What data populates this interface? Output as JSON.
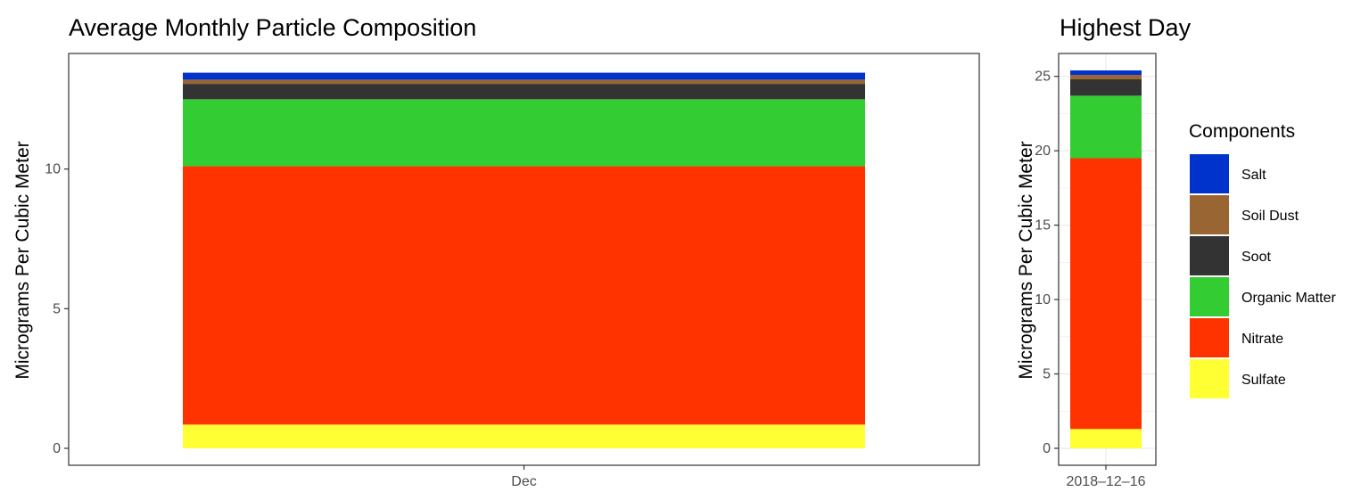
{
  "chart_data": [
    {
      "type": "bar",
      "stacked": true,
      "title": "Average Monthly Particle Composition",
      "xlabel": "",
      "ylabel": "Micrograms Per Cubic Meter",
      "categories": [
        "Dec"
      ],
      "ylim": [
        0,
        13.5
      ],
      "y_ticks": [
        0,
        5,
        10
      ],
      "grid": false,
      "series": [
        {
          "name": "Sulfate",
          "values": [
            0.85
          ]
        },
        {
          "name": "Nitrate",
          "values": [
            9.25
          ]
        },
        {
          "name": "Organic Matter",
          "values": [
            2.4
          ]
        },
        {
          "name": "Soot",
          "values": [
            0.55
          ]
        },
        {
          "name": "Soil Dust",
          "values": [
            0.15
          ]
        },
        {
          "name": "Salt",
          "values": [
            0.25
          ]
        }
      ]
    },
    {
      "type": "bar",
      "stacked": true,
      "title": "Highest Day",
      "xlabel": "",
      "ylabel": "Micrograms Per Cubic Meter",
      "categories": [
        "2018–12–16"
      ],
      "ylim": [
        0,
        25.4
      ],
      "y_ticks": [
        0,
        5,
        10,
        15,
        20,
        25
      ],
      "grid": true,
      "series": [
        {
          "name": "Sulfate",
          "values": [
            1.3
          ]
        },
        {
          "name": "Nitrate",
          "values": [
            18.2
          ]
        },
        {
          "name": "Organic Matter",
          "values": [
            4.2
          ]
        },
        {
          "name": "Soot",
          "values": [
            1.1
          ]
        },
        {
          "name": "Soil Dust",
          "values": [
            0.3
          ]
        },
        {
          "name": "Salt",
          "values": [
            0.3
          ]
        }
      ]
    }
  ],
  "legend": {
    "title": "Components",
    "placement": "right",
    "items": [
      {
        "label": "Salt",
        "color": "#0033CC"
      },
      {
        "label": "Soil Dust",
        "color": "#996633"
      },
      {
        "label": "Soot",
        "color": "#333333"
      },
      {
        "label": "Organic Matter",
        "color": "#33CC33"
      },
      {
        "label": "Nitrate",
        "color": "#FF3300"
      },
      {
        "label": "Sulfate",
        "color": "#FFFF33"
      }
    ]
  }
}
